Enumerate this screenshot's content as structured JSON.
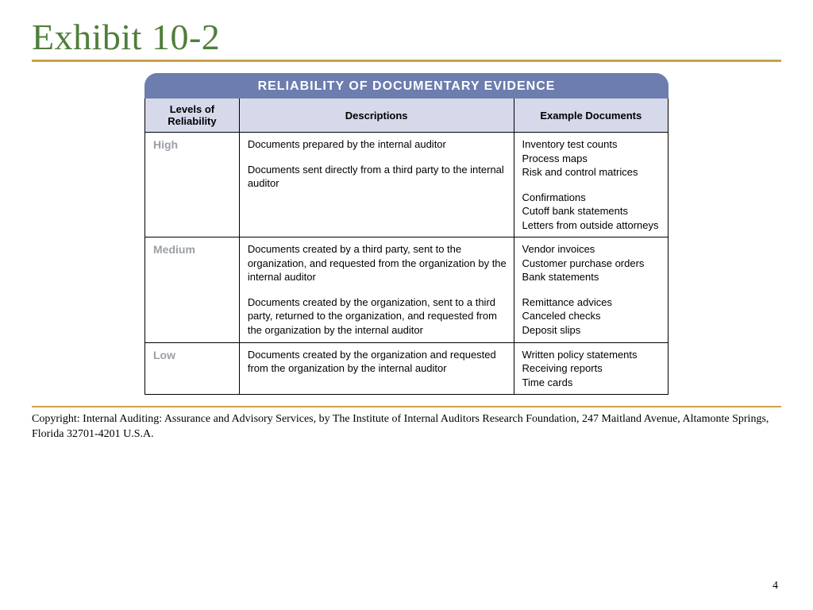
{
  "slide": {
    "title": "Exhibit 10-2",
    "title_color": "#4f7e3a",
    "rule_color": "#c9a24a",
    "page_number": "4"
  },
  "table": {
    "title": "RELIABILITY OF DOCUMENTARY EVIDENCE",
    "title_bg": "#6c7dae",
    "header_bg": "#d5d9ea",
    "body_bg": "#ffffff",
    "border_color": "#000000",
    "level_label_color": "#9ba0a6",
    "columns": {
      "level": "Levels of Reliability",
      "desc": "Descriptions",
      "ex": "Example Documents"
    },
    "rows": [
      {
        "level": "High",
        "blocks": [
          {
            "desc": "Documents prepared by the internal auditor",
            "ex": "Inventory test counts\nProcess maps\nRisk and control matrices"
          },
          {
            "desc": "Documents sent directly from a third party to the internal auditor",
            "ex": "Confirmations\nCutoff bank statements\nLetters from outside attorneys"
          }
        ]
      },
      {
        "level": "Medium",
        "blocks": [
          {
            "desc": "Documents created by a third party, sent to the organization, and requested from the organization by the internal auditor",
            "ex": "Vendor invoices\nCustomer purchase orders\nBank statements"
          },
          {
            "desc": "Documents created by the organization, sent to a third party, returned to the organization, and requested from the organization by the internal auditor",
            "ex": "Remittance advices\nCanceled checks\nDeposit slips"
          }
        ]
      },
      {
        "level": "Low",
        "blocks": [
          {
            "desc": "Documents created by the organization and requested from the organization by the internal auditor",
            "ex": "Written policy statements\nReceiving reports\nTime cards"
          }
        ]
      }
    ]
  },
  "copyright": "Copyright: Internal Auditing: Assurance and Advisory Services, by The Institute of Internal Auditors Research Foundation, 247 Maitland Avenue, Altamonte Springs, Florida 32701-4201 U.S.A."
}
